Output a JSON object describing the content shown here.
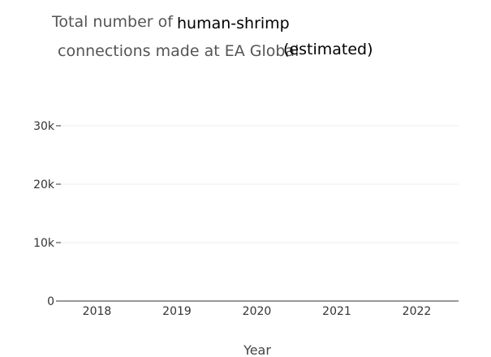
{
  "chart_data": {
    "type": "bar",
    "title": {
      "part1": "Total number of",
      "part2": "human-shrimp",
      "part3": "connections made at EA Global",
      "part4": "(estimated)"
    },
    "xlabel": "Year",
    "ylabel": "",
    "categories": [
      "2018",
      "2019",
      "2020",
      "2021",
      "2022"
    ],
    "values": [
      0,
      0,
      0,
      0,
      0
    ],
    "ylim": [
      0,
      30000
    ],
    "yticks": [
      0,
      10000,
      20000,
      30000
    ],
    "ytick_labels": [
      "0",
      "10k",
      "20k",
      "30k"
    ],
    "grid": true,
    "colors": {
      "grid": "#eeeeee",
      "axis": "#333333",
      "bar": "#4c78a8"
    }
  }
}
